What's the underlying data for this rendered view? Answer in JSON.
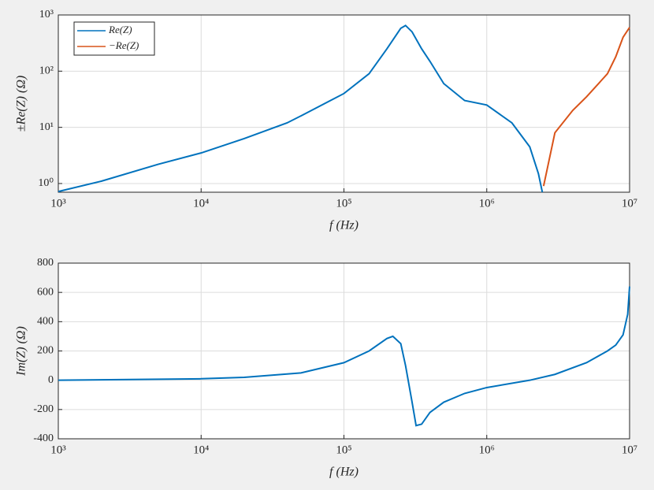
{
  "chart_data": [
    {
      "type": "line",
      "xscale": "log",
      "yscale": "log",
      "grid": true,
      "legend": "northwest",
      "xlabel": "f (Hz)",
      "ylabel": "±Re(Z) (Ω)",
      "xlim": [
        1000,
        10000000
      ],
      "ylim": [
        0.7,
        1000
      ],
      "xticks": [
        {
          "value": 1000,
          "label": "10³"
        },
        {
          "value": 10000,
          "label": "10⁴"
        },
        {
          "value": 100000,
          "label": "10⁵"
        },
        {
          "value": 1000000,
          "label": "10⁶"
        },
        {
          "value": 10000000,
          "label": "10⁷"
        }
      ],
      "yticks": [
        {
          "value": 1,
          "label": "10⁰"
        },
        {
          "value": 10,
          "label": "10¹"
        },
        {
          "value": 100,
          "label": "10²"
        },
        {
          "value": 1000,
          "label": "10³"
        }
      ],
      "x": [
        1000,
        2000,
        5000,
        10000,
        20000,
        40000,
        50000,
        100000,
        150000,
        200000,
        250000,
        270000,
        300000,
        350000,
        400000,
        500000,
        700000,
        1000000,
        1500000,
        2000000,
        2300000,
        2450000,
        2500000,
        3000000,
        4000000,
        5000000,
        7000000,
        8000000,
        9000000,
        10000000
      ],
      "series": [
        {
          "name": "Re(Z)",
          "color": "#0072bd",
          "values": [
            0.72,
            1.1,
            2.2,
            3.5,
            6.3,
            12,
            16,
            40,
            90,
            250,
            580,
            650,
            500,
            250,
            150,
            60,
            30,
            25,
            12,
            4.5,
            1.5,
            0.7,
            null,
            null,
            null,
            null,
            null,
            null,
            null,
            null
          ]
        },
        {
          "name": "−Re(Z)",
          "color": "#d95319",
          "values": [
            null,
            null,
            null,
            null,
            null,
            null,
            null,
            null,
            null,
            null,
            null,
            null,
            null,
            null,
            null,
            null,
            null,
            null,
            null,
            null,
            null,
            null,
            0.9,
            8,
            20,
            35,
            90,
            180,
            400,
            600
          ]
        }
      ]
    },
    {
      "type": "line",
      "xscale": "log",
      "yscale": "linear",
      "grid": true,
      "xlabel": "f (Hz)",
      "ylabel": "Im(Z) (Ω)",
      "xlim": [
        1000,
        10000000
      ],
      "ylim": [
        -400,
        800
      ],
      "xticks": [
        {
          "value": 1000,
          "label": "10³"
        },
        {
          "value": 10000,
          "label": "10⁴"
        },
        {
          "value": 100000,
          "label": "10⁵"
        },
        {
          "value": 1000000,
          "label": "10⁶"
        },
        {
          "value": 10000000,
          "label": "10⁷"
        }
      ],
      "yticks": [
        -400,
        -200,
        0,
        200,
        400,
        600,
        800
      ],
      "x": [
        1000,
        10000,
        20000,
        50000,
        100000,
        150000,
        200000,
        220000,
        250000,
        270000,
        300000,
        320000,
        350000,
        400000,
        500000,
        700000,
        1000000,
        2000000,
        3000000,
        5000000,
        7000000,
        8000000,
        9000000,
        9700000,
        10000000
      ],
      "series": [
        {
          "color": "#0072bd",
          "values": [
            0,
            10,
            20,
            50,
            120,
            200,
            285,
            300,
            250,
            100,
            -150,
            -310,
            -300,
            -220,
            -150,
            -90,
            -50,
            0,
            40,
            120,
            200,
            240,
            310,
            450,
            640
          ]
        }
      ]
    }
  ]
}
